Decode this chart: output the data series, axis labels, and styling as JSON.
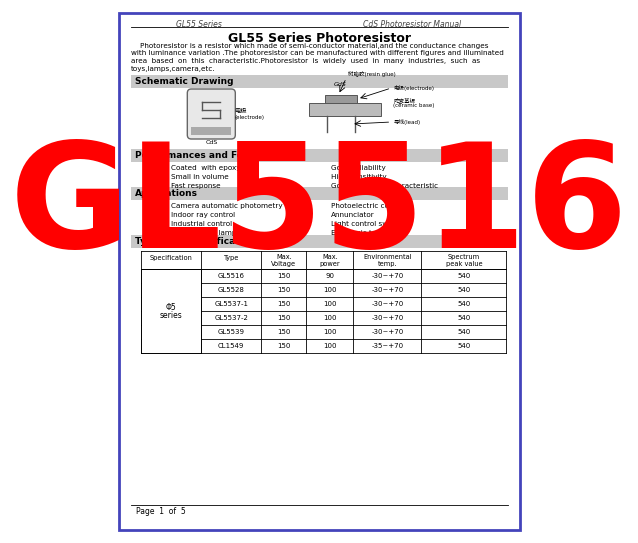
{
  "page_title_left": "GL55 Series",
  "page_title_right": "CdS Photoresistor Manual",
  "main_title": "GL55 Series Photoresistor",
  "intro_text_lines": [
    "    Photoresistor is a resistor which made of semi-conductor material,and the conductance changes",
    "with luminance variation .The photoresistor can be manufactured with different figures and illuminated",
    "area  based  on  this  characteristic.Photoresistor  is  widely  used  in  many  industries,  such  as",
    "toys,lamps,camera,etc."
  ],
  "section1": "Schematic Drawing",
  "section2": "Performances and Features",
  "section3": "Applications",
  "section4": "Types and Specifications",
  "features_left": [
    "Coated  with epoxy",
    "Small in volume",
    "Fast response"
  ],
  "features_right": [
    "Good reliability",
    "High sensitivity",
    "Good spectrum characteristic"
  ],
  "applications": [
    [
      "Camera automatic photometry",
      "Photoelectric control"
    ],
    [
      "Indoor ray control",
      "Annunciator"
    ],
    [
      "Industrial control",
      "Light control switch"
    ],
    [
      "Light control lamp",
      "Electronic toy"
    ]
  ],
  "table_headers": [
    "Specification",
    "Type",
    "Max.\nVoltage",
    "Max.\npower",
    "Environmental\ntemp.",
    "Spectrum\npeak value"
  ],
  "table_data": [
    [
      "GL5516",
      "150",
      "90",
      "-30~+70",
      "540"
    ],
    [
      "GL5528",
      "150",
      "100",
      "-30~+70",
      "540"
    ],
    [
      "GL5537-1",
      "150",
      "100",
      "-30~+70",
      "540"
    ],
    [
      "GL5537-2",
      "150",
      "100",
      "-30~+70",
      "540"
    ],
    [
      "GL5539",
      "150",
      "100",
      "-30~+70",
      "540"
    ],
    [
      "CL1549",
      "150",
      "100",
      "-35~+70",
      "540"
    ]
  ],
  "spec_label_line1": "Φ5",
  "spec_label_line2": "series",
  "watermark_text": "GL5516",
  "watermark_color": "#FF0000",
  "page_footer": "Page  1  of  5",
  "border_color": "#4444BB",
  "section_bg": "#C8C8C8",
  "bg_color": "#FFFFFF",
  "resin_label": "树脂胶(resin glue)",
  "CdS_label": "CdS",
  "GdS_label": "GdS",
  "electrode_label_cn": "电极",
  "electrode_label_en": "(electrode)",
  "electrode_right": "电极(electrode)",
  "ceramic_base_cn": "陀瓷基板",
  "ceramic_base_en": "(ceramic base)",
  "lead_label": "导线(lead)"
}
